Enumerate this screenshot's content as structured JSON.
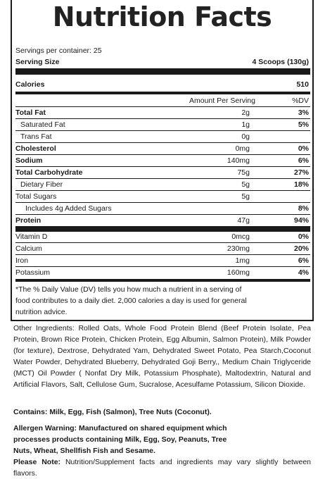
{
  "title": "Nutrition Facts",
  "servings_per_container": "Servings per container: 25",
  "serving_size_label": "Serving Size",
  "serving_size_value": "4 Scoops (130g)",
  "calories_label": "Calories",
  "calories_value": "510",
  "amount_header": "Amount Per Serving",
  "dv_header": "%DV",
  "nutrients": [
    {
      "label": "Total Fat",
      "amount": "2g",
      "dv": "3%"
    },
    {
      "label": "Saturated Fat",
      "amount": "1g",
      "dv": "5%"
    },
    {
      "label": "Trans Fat",
      "amount": "0g",
      "dv": ""
    },
    {
      "label": "Cholesterol",
      "amount": "0mg",
      "dv": "0%"
    },
    {
      "label": "Sodium",
      "amount": "140mg",
      "dv": "6%"
    },
    {
      "label": "Total Carbohydrate",
      "amount": "75g",
      "dv": "27%"
    },
    {
      "label": "Dietary Fiber",
      "amount": "5g",
      "dv": "18%"
    },
    {
      "label": "Total Sugars",
      "amount": "5g",
      "dv": ""
    },
    {
      "label": "Includes 4g Added Sugars",
      "amount": "",
      "dv": "8%"
    },
    {
      "label": "Protein",
      "amount": "47g",
      "dv": "94%"
    }
  ],
  "vitamins": [
    {
      "label": "Vitamin D",
      "amount": "0mcg",
      "dv": "0%"
    },
    {
      "label": "Calcium",
      "amount": "230mg",
      "dv": "20%"
    },
    {
      "label": "Iron",
      "amount": "1mg",
      "dv": "6%"
    },
    {
      "label": "Potassium",
      "amount": "160mg",
      "dv": "4%"
    }
  ],
  "footnote": "*The % Daily Value (DV) tells you how much a nutrient in a serving of food contributes to a daily diet. 2,000 calories a day is used for general nutrition advice.",
  "other_ingredients": "Other Ingredients: Rolled Oats, Whole Food Protein Blend (Beef Protein Isolate, Pea Protein, Brown Rice Protein, Chicken Protein, Egg Albumin, Salmon Protein), Milk Powder (for texture), Dextrose, Dehydrated Yam, Dehydrated Sweet Potato, Pea Starch,Coconut Water Powder, Dehydrated Blueberry, Dehydrated Goji Berry,, Medium Chain Triglyceride (MCT) Oil Powder ( Nonfat Dry Milk, Potassium Phosphate), Maltodextrin, Natural and Artificial Flavors, Salt, Cellulose Gum, Sucralose, Acesulfame Potassium, Silicon Dioxide.",
  "contains": "Contains: Milk, Egg, Fish (Salmon), Tree Nuts (Coconut).",
  "allergen_warning": "Allergen Warning: Manufactured on shared equipment which processes products containing Milk, Egg, Soy, Peanuts, Tree Nuts, Wheat, Shellfish Fish and Sesame.",
  "please_note_label": "Please Note:",
  "please_note_text": "Nutrition/Supplement facts and ingredients may vary slightly between flavors."
}
